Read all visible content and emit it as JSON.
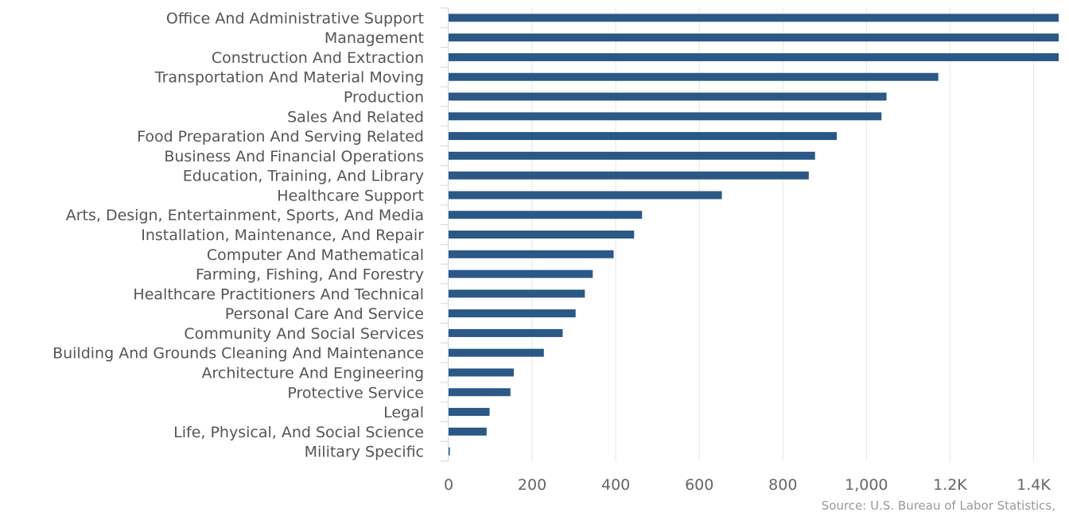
{
  "chart_data": {
    "type": "bar",
    "orientation": "horizontal",
    "categories": [
      "Office And Administrative Support",
      "Management",
      "Construction And Extraction",
      "Transportation And Material Moving",
      "Production",
      "Sales And Related",
      "Food Preparation And Serving Related",
      "Business And Financial Operations",
      "Education, Training, And Library",
      "Healthcare Support",
      "Arts, Design, Entertainment, Sports, And Media",
      "Installation, Maintenance, And Repair",
      "Computer And Mathematical",
      "Farming, Fishing, And Forestry",
      "Healthcare Practitioners And Technical",
      "Personal Care And Service",
      "Community And Social Services",
      "Building And Grounds Cleaning And Maintenance",
      "Architecture And Engineering",
      "Protective Service",
      "Legal",
      "Life, Physical, And Social Science",
      "Military Specific"
    ],
    "values": [
      1500,
      1500,
      1500,
      1172,
      1048,
      1036,
      929,
      877,
      862,
      654,
      463,
      444,
      395,
      345,
      326,
      304,
      273,
      228,
      156,
      148,
      98,
      91,
      3
    ],
    "xlim": [
      0,
      1460
    ],
    "ticks": [
      0,
      200,
      400,
      600,
      800,
      1000,
      1200,
      1400
    ],
    "tick_labels": [
      "0",
      "200",
      "400",
      "600",
      "800",
      "1,000",
      "1.2K",
      "1.4K"
    ],
    "bar_color": "#2b5886",
    "grid": true
  },
  "credits": "Source: U.S. Bureau of Labor Statistics,"
}
